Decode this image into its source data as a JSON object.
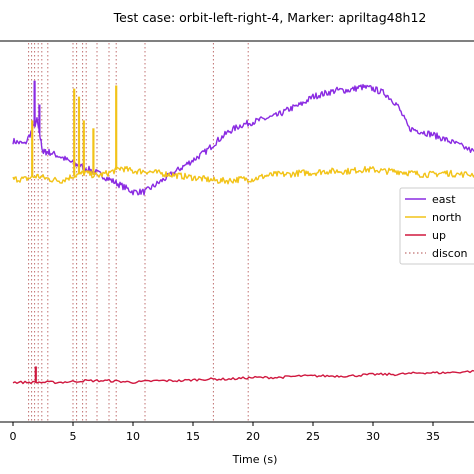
{
  "chart_data": {
    "type": "line",
    "title": "Test case: orbit-left-right-4, Marker: apriltag48h12",
    "xlabel": "Time (s)",
    "ylabel": "",
    "xlim": [
      -1.0,
      38.5
    ],
    "xticks": [
      0,
      5,
      10,
      15,
      20,
      25,
      30,
      35
    ],
    "xtick_labels": [
      "0",
      "5",
      "10",
      "15",
      "20",
      "25",
      "30",
      "35"
    ],
    "grid": false,
    "legend_position": "right",
    "legend": [
      {
        "label": "east",
        "color": "#8a2be2",
        "style": "solid"
      },
      {
        "label": "north",
        "color": "#f2c318",
        "style": "solid"
      },
      {
        "label": "up",
        "color": "#d0183f",
        "style": "solid"
      },
      {
        "label": "discon",
        "color": "#c07070",
        "style": "dotted"
      }
    ],
    "series": [
      {
        "name": "east",
        "color": "#8a2be2",
        "x": [
          0,
          1,
          2,
          2.5,
          3,
          4,
          5,
          6,
          7,
          8,
          9,
          10,
          11,
          12,
          13,
          14,
          15,
          16,
          17,
          18,
          19,
          20,
          21,
          22,
          23,
          24,
          25,
          26,
          27,
          28,
          29,
          30,
          31,
          32,
          33,
          34,
          35,
          36,
          37,
          38.5
        ],
        "y": [
          0.62,
          0.6,
          0.75,
          0.55,
          0.55,
          0.52,
          0.48,
          0.45,
          0.42,
          0.38,
          0.34,
          0.3,
          0.3,
          0.35,
          0.4,
          0.45,
          0.5,
          0.55,
          0.62,
          0.68,
          0.72,
          0.74,
          0.76,
          0.78,
          0.82,
          0.85,
          0.9,
          0.92,
          0.94,
          0.94,
          0.96,
          0.95,
          0.92,
          0.85,
          0.7,
          0.68,
          0.66,
          0.63,
          0.6,
          0.55
        ]
      },
      {
        "name": "north",
        "color": "#f2c318",
        "x": [
          0,
          1,
          2,
          3,
          4,
          5,
          6,
          7,
          8,
          9,
          10,
          11,
          12,
          13,
          14,
          15,
          16,
          17,
          18,
          19,
          20,
          21,
          22,
          23,
          24,
          25,
          26,
          27,
          28,
          29,
          30,
          31,
          32,
          33,
          34,
          35,
          36,
          37,
          38.5
        ],
        "y": [
          0.38,
          0.38,
          0.4,
          0.38,
          0.37,
          0.4,
          0.42,
          0.4,
          0.42,
          0.45,
          0.43,
          0.43,
          0.42,
          0.41,
          0.4,
          0.39,
          0.38,
          0.37,
          0.37,
          0.38,
          0.38,
          0.4,
          0.41,
          0.41,
          0.42,
          0.42,
          0.43,
          0.43,
          0.43,
          0.44,
          0.44,
          0.43,
          0.43,
          0.42,
          0.41,
          0.41,
          0.42,
          0.41,
          0.41
        ]
      },
      {
        "name": "up",
        "color": "#d0183f",
        "x": [
          0,
          2,
          4,
          6,
          8,
          10,
          12,
          14,
          16,
          18,
          20,
          22,
          24,
          26,
          28,
          30,
          32,
          34,
          36,
          38.5
        ],
        "y": [
          -0.9,
          -0.9,
          -0.9,
          -0.89,
          -0.89,
          -0.9,
          -0.89,
          -0.89,
          -0.88,
          -0.88,
          -0.87,
          -0.87,
          -0.86,
          -0.86,
          -0.86,
          -0.85,
          -0.85,
          -0.84,
          -0.84,
          -0.83
        ]
      }
    ],
    "spikes": [
      {
        "series": "east",
        "x": 1.8,
        "y": 1.0
      },
      {
        "series": "east",
        "x": 2.2,
        "y": 0.85
      },
      {
        "series": "north",
        "x": 5.1,
        "y": 0.95
      },
      {
        "series": "north",
        "x": 5.5,
        "y": 0.9
      },
      {
        "series": "north",
        "x": 5.9,
        "y": 0.75
      },
      {
        "series": "north",
        "x": 6.7,
        "y": 0.7
      },
      {
        "series": "north",
        "x": 8.6,
        "y": 0.97
      },
      {
        "series": "north",
        "x": 1.6,
        "y": 0.75
      },
      {
        "series": "up",
        "x": 1.9,
        "y": -0.8
      }
    ],
    "discontinuities_x": [
      1.3,
      1.55,
      1.8,
      2.1,
      2.4,
      2.9,
      5.0,
      5.3,
      5.8,
      6.1,
      7.0,
      8.0,
      8.6,
      11.0,
      16.7,
      19.6
    ],
    "ylim": [
      -1.15,
      1.25
    ]
  }
}
